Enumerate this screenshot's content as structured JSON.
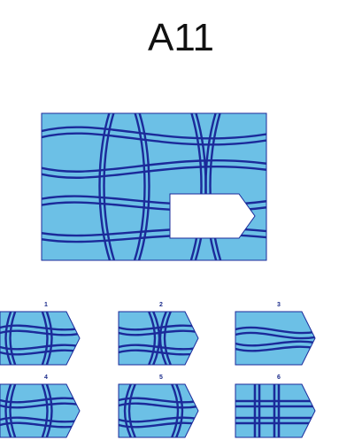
{
  "title": "A11",
  "colors": {
    "panel_fill": "#6cc0e6",
    "line": "#1b2a9a",
    "cutout": "#ffffff"
  },
  "options": [
    {
      "number": "1"
    },
    {
      "number": "2"
    },
    {
      "number": "3"
    },
    {
      "number": "4"
    },
    {
      "number": "5"
    },
    {
      "number": "6"
    }
  ]
}
